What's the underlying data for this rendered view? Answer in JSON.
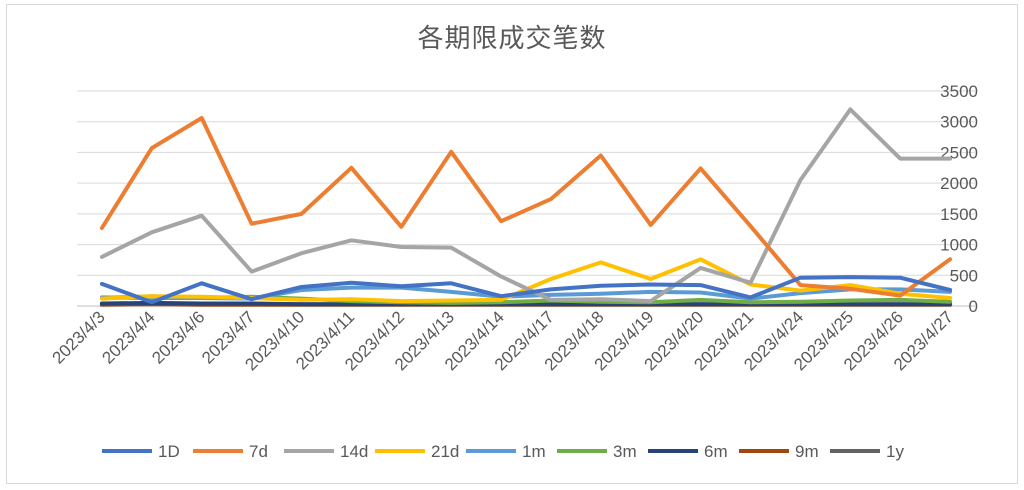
{
  "chart_data": {
    "type": "line",
    "title": "各期限成交笔数",
    "xlabel": "",
    "ylabel": "",
    "ylim": [
      0,
      3500
    ],
    "yticks": [
      0,
      500,
      1000,
      1500,
      2000,
      2500,
      3000,
      3500
    ],
    "grid": true,
    "y_axis_side": "right",
    "legend_position": "bottom",
    "categories": [
      "2023/4/3",
      "2023/4/4",
      "2023/4/6",
      "2023/4/7",
      "2023/4/10",
      "2023/4/11",
      "2023/4/12",
      "2023/4/13",
      "2023/4/14",
      "2023/4/17",
      "2023/4/18",
      "2023/4/19",
      "2023/4/20",
      "2023/4/21",
      "2023/4/24",
      "2023/4/25",
      "2023/4/26",
      "2023/4/27"
    ],
    "series": [
      {
        "name": "1D",
        "color": "#4472c4",
        "values": [
          360,
          60,
          370,
          110,
          310,
          380,
          320,
          370,
          160,
          270,
          330,
          350,
          340,
          140,
          460,
          470,
          460,
          260
        ]
      },
      {
        "name": "7d",
        "color": "#ed7d31",
        "values": [
          1270,
          2570,
          3060,
          1340,
          1500,
          2250,
          1290,
          2510,
          1380,
          1740,
          2450,
          1320,
          2240,
          1300,
          340,
          280,
          170,
          760
        ]
      },
      {
        "name": "14d",
        "color": "#a5a5a5",
        "values": [
          800,
          1200,
          1470,
          560,
          860,
          1070,
          960,
          950,
          480,
          100,
          110,
          80,
          620,
          380,
          2050,
          3200,
          2400,
          2400
        ]
      },
      {
        "name": "21d",
        "color": "#ffc000",
        "values": [
          120,
          160,
          150,
          130,
          100,
          110,
          80,
          90,
          100,
          440,
          710,
          440,
          760,
          350,
          250,
          340,
          200,
          130
        ]
      },
      {
        "name": "1m",
        "color": "#5b9bd5",
        "values": [
          140,
          130,
          130,
          120,
          260,
          300,
          300,
          230,
          150,
          180,
          200,
          230,
          220,
          120,
          210,
          270,
          270,
          230
        ]
      },
      {
        "name": "3m",
        "color": "#70ad47",
        "values": [
          130,
          160,
          130,
          150,
          120,
          80,
          60,
          50,
          60,
          90,
          70,
          60,
          100,
          60,
          70,
          90,
          100,
          70
        ]
      },
      {
        "name": "6m",
        "color": "#264478",
        "values": [
          40,
          50,
          40,
          40,
          30,
          30,
          30,
          30,
          30,
          30,
          30,
          30,
          30,
          30,
          30,
          30,
          30,
          30
        ]
      },
      {
        "name": "9m",
        "color": "#9e480e",
        "values": [
          20,
          30,
          20,
          20,
          20,
          20,
          20,
          20,
          20,
          20,
          20,
          20,
          20,
          20,
          20,
          20,
          20,
          20
        ]
      },
      {
        "name": "1y",
        "color": "#636363",
        "values": [
          30,
          40,
          30,
          30,
          30,
          30,
          30,
          30,
          30,
          30,
          30,
          30,
          30,
          30,
          30,
          30,
          30,
          30
        ]
      }
    ]
  }
}
